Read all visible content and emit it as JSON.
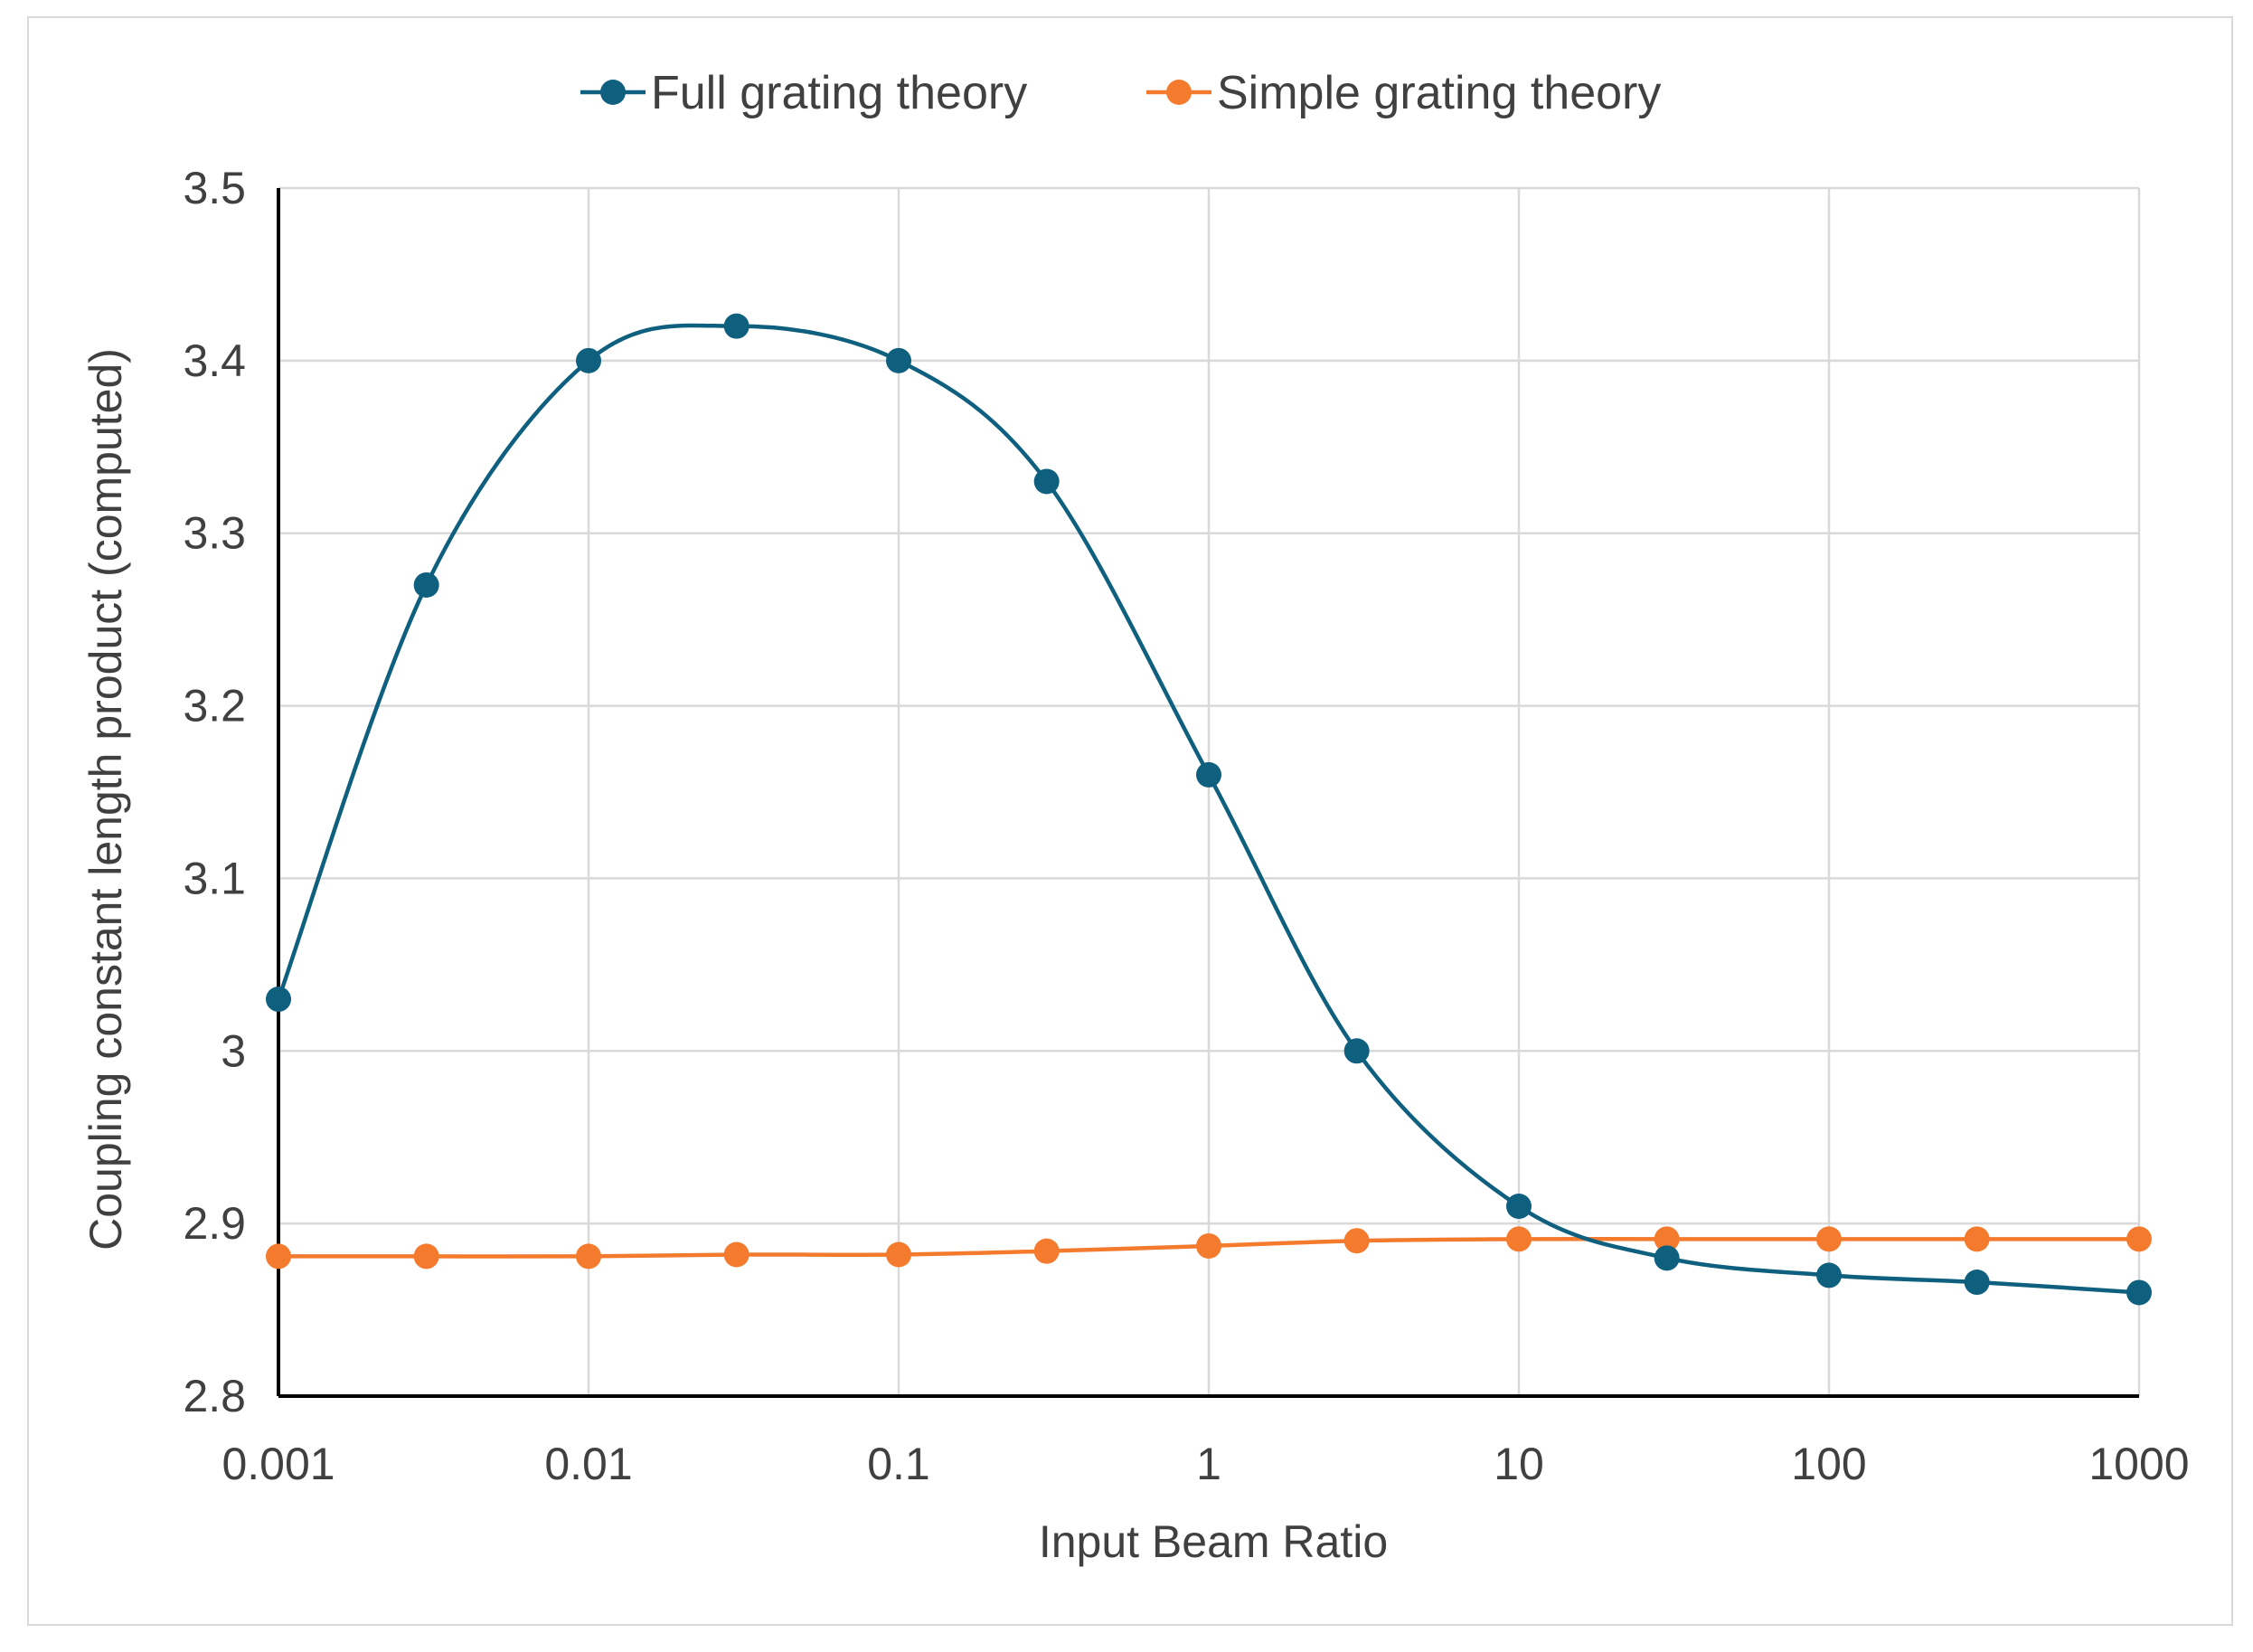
{
  "chart_data": {
    "type": "line",
    "xscale": "log",
    "x": [
      0.001,
      0.003,
      0.01,
      0.03,
      0.1,
      0.3,
      1,
      3,
      10,
      30,
      100,
      300,
      1000
    ],
    "xticks": [
      0.001,
      0.01,
      0.1,
      1,
      10,
      100,
      1000
    ],
    "xtick_labels": [
      "0.001",
      "0.01",
      "0.1",
      "1",
      "10",
      "100",
      "1000"
    ],
    "ylim": [
      2.8,
      3.5
    ],
    "yticks": [
      2.8,
      2.9,
      3.0,
      3.1,
      3.2,
      3.3,
      3.4,
      3.5
    ],
    "ytick_labels": [
      "2.8",
      "2.9",
      "3",
      "3.1",
      "3.2",
      "3.3",
      "3.4",
      "3.5"
    ],
    "xlabel": "Input Beam Ratio",
    "ylabel": "Coupling constant length product (computed)",
    "grid": true,
    "legend_position": "top",
    "smooth": true,
    "series": [
      {
        "name": "Full grating theory",
        "color": "#0f5f7f",
        "values": [
          3.03,
          3.27,
          3.4,
          3.42,
          3.4,
          3.33,
          3.16,
          3.0,
          2.91,
          2.88,
          2.87,
          2.866,
          2.86
        ]
      },
      {
        "name": "Simple grating theory",
        "color": "#f47b2e",
        "values": [
          2.881,
          2.881,
          2.881,
          2.882,
          2.882,
          2.884,
          2.887,
          2.89,
          2.891,
          2.891,
          2.891,
          2.891,
          2.891
        ]
      }
    ]
  }
}
